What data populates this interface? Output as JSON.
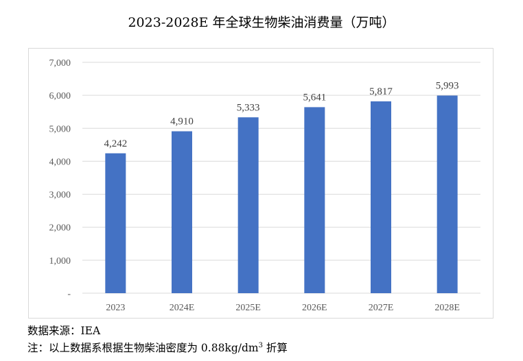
{
  "title": "2023-2028E 年全球生物柴油消费量（万吨）",
  "chart_data": {
    "type": "bar",
    "title": "2023-2028E 年全球生物柴油消费量（万吨）",
    "categories": [
      "2023",
      "2024E",
      "2025E",
      "2026E",
      "2027E",
      "2028E"
    ],
    "values": [
      4242,
      4910,
      5333,
      5641,
      5817,
      5993
    ],
    "data_labels": [
      "4,242",
      "4,910",
      "5,333",
      "5,641",
      "5,817",
      "5,993"
    ],
    "ylim": [
      0,
      7000
    ],
    "yticks": [
      0,
      1000,
      2000,
      3000,
      4000,
      5000,
      6000,
      7000
    ],
    "ytick_labels": [
      "-",
      "1,000",
      "2,000",
      "3,000",
      "4,000",
      "5,000",
      "6,000",
      "7,000"
    ],
    "grid": true,
    "bar_color": "#4472c4",
    "grid_color": "#d9d9d9"
  },
  "footer": {
    "source": "数据来源：IEA",
    "note_prefix": "注：以上数据系根据生物柴油密度为 0.88kg/dm",
    "note_sup": "3",
    "note_suffix": " 折算"
  }
}
